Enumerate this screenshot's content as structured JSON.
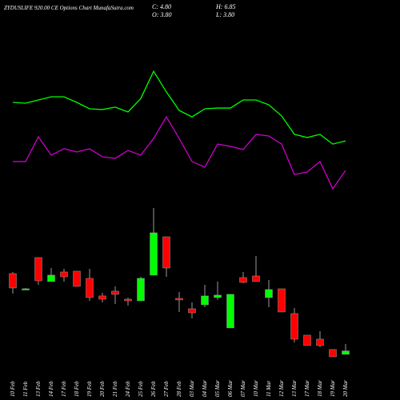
{
  "chart_data": {
    "type": "candlestick",
    "title": "ZYDUSLIFE 920.00 CE Options Chart MunafaSutra.com",
    "info": {
      "close": "C: 4.80",
      "high": "H: 6.85",
      "open": "O: 3.80",
      "low": "L: 3.80"
    },
    "categories": [
      "10 Feb",
      "11 Feb",
      "13 Feb",
      "14 Feb",
      "17 Feb",
      "18 Feb",
      "19 Feb",
      "20 Feb",
      "21 Feb",
      "24 Feb",
      "25 Feb",
      "26 Feb",
      "27 Feb",
      "28 Feb",
      "03 Mar",
      "04 Mar",
      "05 Mar",
      "06 Mar",
      "07 Mar",
      "10 Mar",
      "11 Mar",
      "12 Mar",
      "13 Mar",
      "17 Mar",
      "18 Mar",
      "19 Mar",
      "20 Mar"
    ],
    "open": [
      27.45,
      23.0,
      32.14,
      25.11,
      27.92,
      28.16,
      26.05,
      20.9,
      22.3,
      19.96,
      19.49,
      26.99,
      38.23,
      20.19,
      17.15,
      18.32,
      20.43,
      11.53,
      26.28,
      26.75,
      20.43,
      23.0,
      15.74,
      9.42,
      8.25,
      5.21,
      3.8
    ],
    "high": [
      27.92,
      23.24,
      32.14,
      29.09,
      28.86,
      28.16,
      28.86,
      21.83,
      23.71,
      20.43,
      26.52,
      46.66,
      38.23,
      22.07,
      19.02,
      24.18,
      25.11,
      21.37,
      27.92,
      32.61,
      25.58,
      23.0,
      17.38,
      9.42,
      10.59,
      5.21,
      6.85
    ],
    "low": [
      21.6,
      22.77,
      24.18,
      25.11,
      25.11,
      23.71,
      19.49,
      19.02,
      18.55,
      18.09,
      19.49,
      26.99,
      26.52,
      16.21,
      14.34,
      17.62,
      19.73,
      11.53,
      24.64,
      25.11,
      17.62,
      16.21,
      7.31,
      6.38,
      5.91,
      3.1,
      3.8
    ],
    "close": [
      23.24,
      23.0,
      25.35,
      26.99,
      26.52,
      23.71,
      20.43,
      19.96,
      21.37,
      19.49,
      26.05,
      39.4,
      29.09,
      19.73,
      15.98,
      20.9,
      21.13,
      21.37,
      24.88,
      25.11,
      22.77,
      16.21,
      8.25,
      6.38,
      6.38,
      3.1,
      4.8
    ],
    "up_color": "#00ff00",
    "down_color": "#ff0000",
    "ylim": [
      -0.2,
      49
    ],
    "y2lim": [
      0,
      100
    ],
    "series": [
      {
        "color": "#00ff00",
        "axis": "y2",
        "values": [
          64.2,
          63.7,
          65.8,
          67.9,
          67.9,
          64.2,
          60.0,
          59.5,
          61.1,
          57.9,
          66.8,
          84.7,
          71.1,
          58.9,
          54.7,
          60.0,
          60.5,
          60.5,
          65.8,
          65.8,
          62.6,
          55.3,
          43.2,
          41.1,
          43.2,
          36.8,
          38.9
        ]
      },
      {
        "color": "#cc00cc",
        "axis": "y2",
        "values": [
          25.3,
          25.3,
          41.6,
          29.5,
          33.7,
          31.6,
          33.7,
          28.4,
          27.4,
          32.6,
          29.5,
          40.5,
          54.7,
          40.5,
          25.3,
          21.6,
          36.8,
          35.3,
          33.2,
          43.2,
          42.1,
          36.8,
          16.8,
          18.4,
          25.3,
          7.4,
          19.5
        ]
      }
    ]
  }
}
